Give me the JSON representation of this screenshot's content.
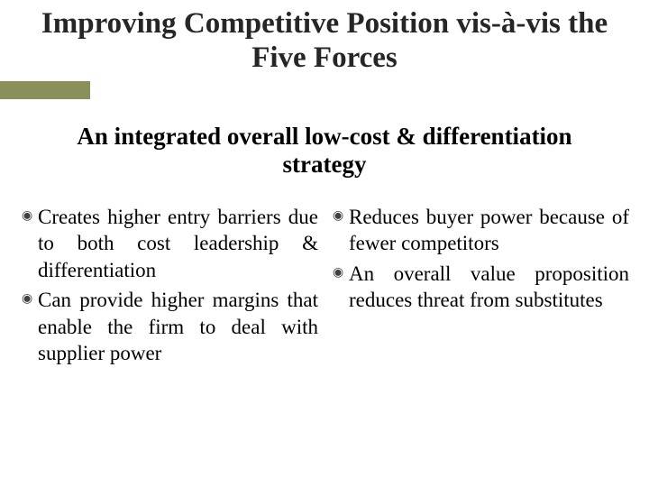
{
  "title": "Improving Competitive Position vis-à-vis the Five Forces",
  "subtitle": "An integrated overall low-cost & differentiation strategy",
  "accent_color": "#8a8f5c",
  "title_fontsize": 33,
  "subtitle_fontsize": 27,
  "body_fontsize": 23,
  "bullet_glyph": "◉",
  "columns": [
    {
      "items": [
        "Creates higher entry barriers due to both cost leadership & differentiation",
        "Can provide higher margins that enable the firm to deal with supplier power"
      ]
    },
    {
      "items": [
        "Reduces buyer power because of fewer competitors",
        "An overall value proposition reduces threat from substitutes"
      ]
    }
  ]
}
